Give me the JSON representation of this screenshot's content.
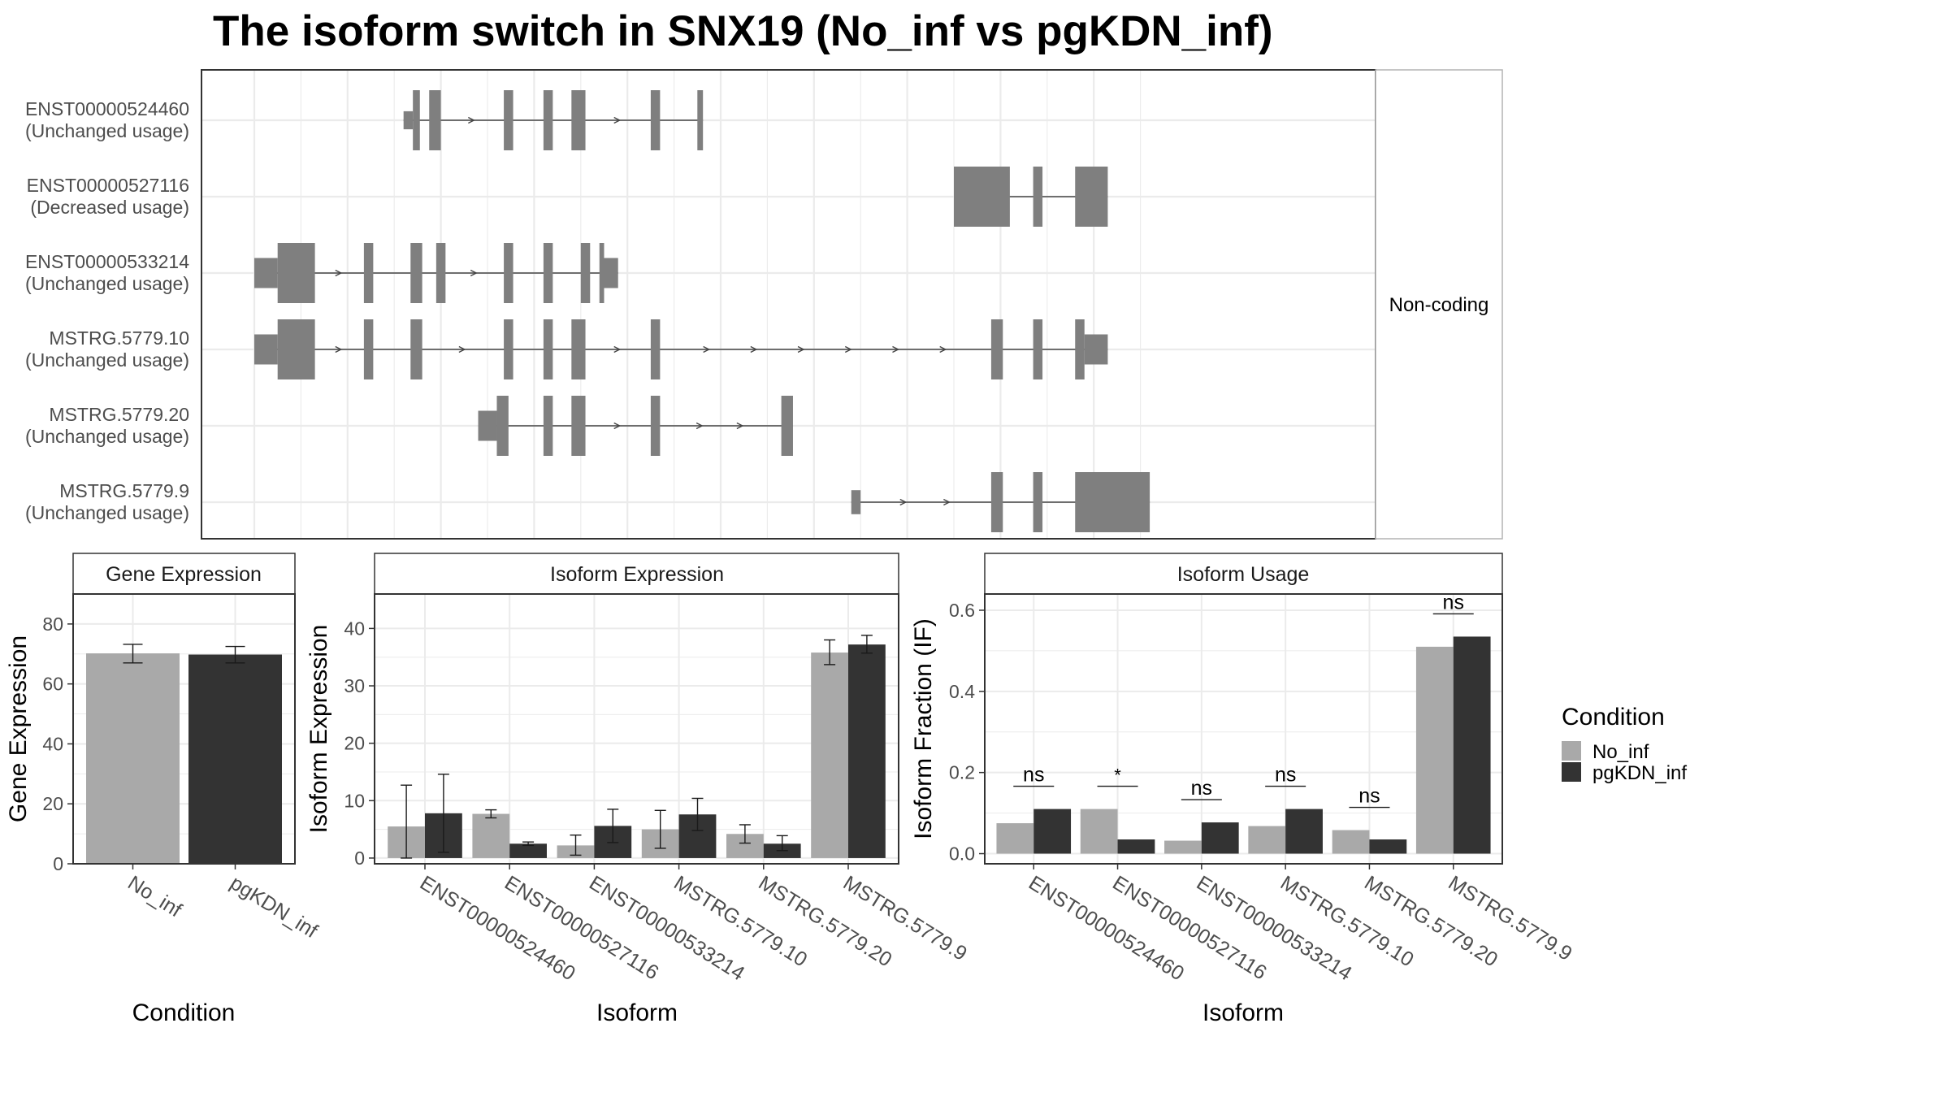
{
  "title": "The isoform switch in SNX19 (No_inf vs pgKDN_inf)",
  "colors": {
    "exon": "#7f7f7f",
    "no_inf": "#a9a9a9",
    "pgkdn_inf": "#333333",
    "grid": "#ebebeb",
    "panel_border": "#333333",
    "strip_border": "#b3b3b3"
  },
  "structure_panel": {
    "facet_label": "Non-coding",
    "isoforms": [
      {
        "name": "ENST00000524460",
        "usage": "(Unchanged usage)",
        "exons": [
          [
            3.2,
            3.4,
            0.3
          ],
          [
            3.4,
            3.55,
            1
          ],
          [
            3.75,
            4.0,
            1
          ],
          [
            5.35,
            5.55,
            1
          ],
          [
            6.2,
            6.4,
            1
          ],
          [
            6.8,
            7.1,
            1
          ],
          [
            8.5,
            8.7,
            1
          ],
          [
            9.5,
            9.62,
            1
          ]
        ]
      },
      {
        "name": "ENST00000527116",
        "usage": "(Decreased usage)",
        "exons": [
          [
            15.0,
            16.2,
            1
          ],
          [
            16.7,
            16.9,
            1
          ],
          [
            17.6,
            18.3,
            1
          ]
        ]
      },
      {
        "name": "ENST00000533214",
        "usage": "(Unchanged usage)",
        "exons": [
          [
            0,
            0.5,
            0.5
          ],
          [
            0.5,
            1.3,
            1
          ],
          [
            2.35,
            2.55,
            1
          ],
          [
            3.35,
            3.6,
            1
          ],
          [
            3.9,
            4.1,
            1
          ],
          [
            5.35,
            5.55,
            1
          ],
          [
            6.2,
            6.4,
            1
          ],
          [
            7.0,
            7.2,
            1
          ],
          [
            7.4,
            7.5,
            1
          ],
          [
            7.5,
            7.8,
            0.5
          ]
        ]
      },
      {
        "name": "MSTRG.5779.10",
        "usage": "(Unchanged usage)",
        "exons": [
          [
            0,
            0.5,
            0.5
          ],
          [
            0.5,
            1.3,
            1
          ],
          [
            2.35,
            2.55,
            1
          ],
          [
            3.35,
            3.6,
            1
          ],
          [
            5.35,
            5.55,
            1
          ],
          [
            6.2,
            6.4,
            1
          ],
          [
            6.8,
            7.1,
            1
          ],
          [
            8.5,
            8.7,
            1
          ],
          [
            15.8,
            16.05,
            1
          ],
          [
            16.7,
            16.9,
            1
          ],
          [
            17.6,
            17.8,
            1
          ],
          [
            17.8,
            18.3,
            0.5
          ]
        ]
      },
      {
        "name": "MSTRG.5779.20",
        "usage": "(Unchanged usage)",
        "exons": [
          [
            4.8,
            5.2,
            0.5
          ],
          [
            5.2,
            5.45,
            1
          ],
          [
            6.2,
            6.4,
            1
          ],
          [
            6.8,
            7.1,
            1
          ],
          [
            8.5,
            8.7,
            1
          ],
          [
            11.3,
            11.55,
            1
          ]
        ]
      },
      {
        "name": "MSTRG.5779.9",
        "usage": "(Unchanged usage)",
        "exons": [
          [
            12.8,
            13.0,
            0.4
          ],
          [
            15.8,
            16.05,
            1
          ],
          [
            16.7,
            16.9,
            1
          ],
          [
            17.6,
            19.2,
            1
          ]
        ]
      }
    ]
  },
  "legend": {
    "title": "Condition",
    "items": [
      {
        "label": "No_inf",
        "color": "#a9a9a9"
      },
      {
        "label": "pgKDN_inf",
        "color": "#333333"
      }
    ]
  },
  "chart_data": [
    {
      "type": "bar",
      "title": "Gene Expression",
      "xlabel": "Condition",
      "ylabel": "Gene Expression",
      "ylim": [
        0,
        90
      ],
      "yticks": [
        0,
        20,
        40,
        60,
        80
      ],
      "categories": [
        "No_inf",
        "pgKDN_inf"
      ],
      "series": [
        {
          "values": [
            70.2,
            69.8
          ],
          "errors": [
            [
              67,
              73.2
            ],
            [
              67,
              72.5
            ]
          ]
        }
      ]
    },
    {
      "type": "bar",
      "title": "Isoform Expression",
      "xlabel": "Isoform",
      "ylabel": "Isoform Expression",
      "ylim": [
        -1,
        46
      ],
      "yticks": [
        0,
        10,
        20,
        30,
        40
      ],
      "categories": [
        "ENST00000524460",
        "ENST00000527116",
        "ENST00000533214",
        "MSTRG.5779.10",
        "MSTRG.5779.20",
        "MSTRG.5779.9"
      ],
      "series": [
        {
          "name": "No_inf",
          "values": [
            5.5,
            7.7,
            2.2,
            5.0,
            4.2,
            35.8
          ],
          "errors": [
            [
              0,
              12.7
            ],
            [
              7,
              8.4
            ],
            [
              0.5,
              4
            ],
            [
              1.7,
              8.3
            ],
            [
              2.6,
              5.8
            ],
            [
              33.7,
              38
            ]
          ]
        },
        {
          "name": "pgKDN_inf",
          "values": [
            7.8,
            2.5,
            5.6,
            7.6,
            2.5,
            37.2
          ],
          "errors": [
            [
              1,
              14.6
            ],
            [
              2.2,
              2.8
            ],
            [
              2.7,
              8.5
            ],
            [
              4.8,
              10.4
            ],
            [
              1.3,
              3.9
            ],
            [
              35.7,
              38.8
            ]
          ]
        }
      ]
    },
    {
      "type": "bar",
      "title": "Isoform Usage",
      "xlabel": "Isoform",
      "ylabel": "Isoform Fraction (IF)",
      "ylim": [
        -0.025,
        0.64
      ],
      "yticks": [
        0.0,
        0.2,
        0.4,
        0.6
      ],
      "ytick_labels": [
        "0.0",
        "0.2",
        "0.4",
        "0.6"
      ],
      "categories": [
        "ENST00000524460",
        "ENST00000527116",
        "ENST00000533214",
        "MSTRG.5779.10",
        "MSTRG.5779.20",
        "MSTRG.5779.9"
      ],
      "series": [
        {
          "name": "No_inf",
          "values": [
            0.075,
            0.11,
            0.032,
            0.068,
            0.058,
            0.51
          ]
        },
        {
          "name": "pgKDN_inf",
          "values": [
            0.11,
            0.035,
            0.077,
            0.11,
            0.035,
            0.535
          ]
        }
      ],
      "significance": [
        "ns",
        "*",
        "ns",
        "ns",
        "ns",
        "ns"
      ]
    }
  ]
}
